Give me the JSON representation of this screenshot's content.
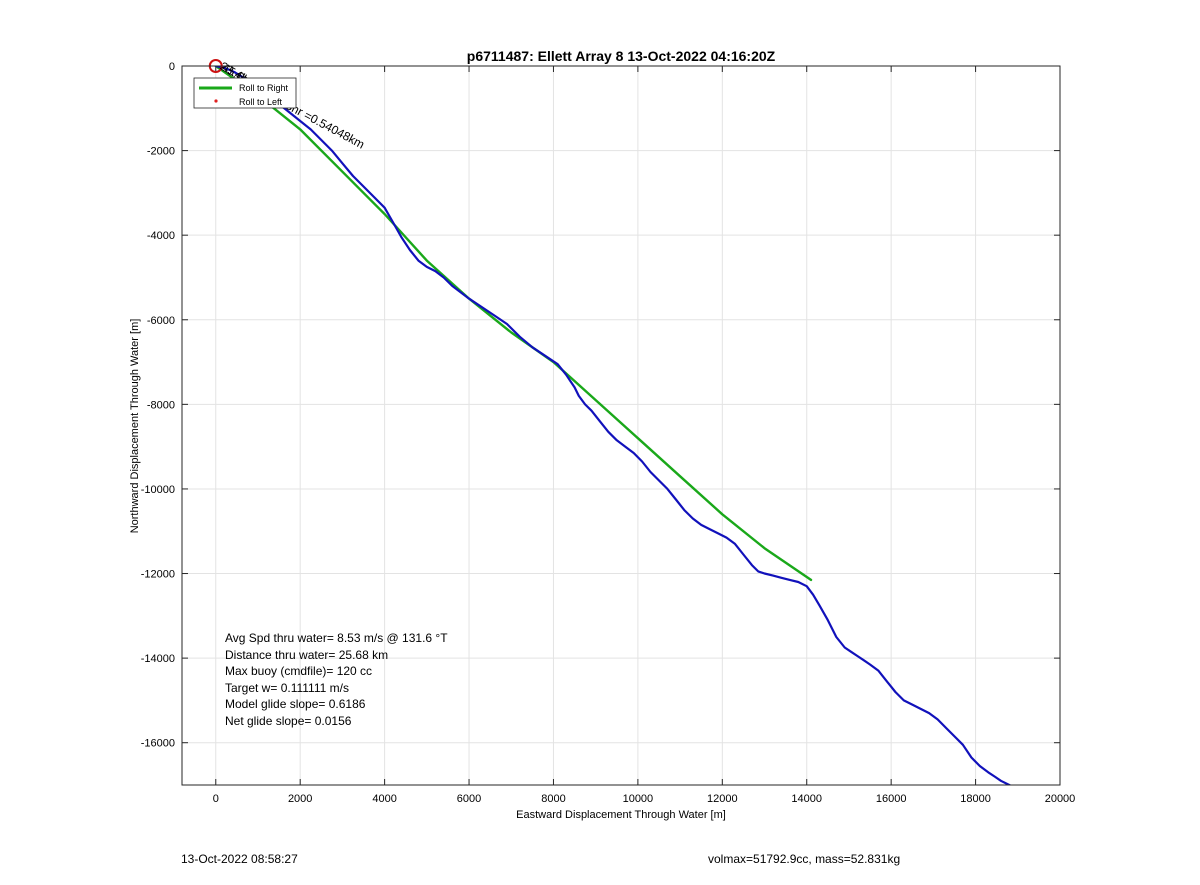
{
  "chart_data": {
    "type": "line",
    "title": "p6711487: Ellett Array 8 13-Oct-2022 04:16:20Z",
    "xlabel": "Eastward Displacement Through Water [m]",
    "ylabel": "Northward Displacement Through Water [m]",
    "xlim": [
      -800,
      20000
    ],
    "ylim": [
      -17000,
      0
    ],
    "xticks": [
      0,
      2000,
      4000,
      6000,
      8000,
      10000,
      12000,
      14000,
      16000,
      18000,
      20000
    ],
    "yticks": [
      0,
      -2000,
      -4000,
      -6000,
      -8000,
      -10000,
      -12000,
      -14000,
      -16000
    ],
    "grid": true,
    "legend_position": "top-left",
    "legend": [
      {
        "label": "Roll to Right",
        "color": "#1aa81a",
        "style": "line"
      },
      {
        "label": "Roll to Left",
        "color": "#e02020",
        "style": "dot"
      }
    ],
    "series": [
      {
        "color": "#1111bb",
        "x": [
          0,
          80,
          180,
          300,
          450,
          600,
          800,
          1000,
          1250,
          1500,
          1750,
          2000,
          2250,
          2500,
          2750,
          3000,
          3250,
          3500,
          3750,
          4000,
          4200,
          4400,
          4600,
          4800,
          5000,
          5200,
          5400,
          5600,
          5800,
          6000,
          6300,
          6600,
          6900,
          7200,
          7500,
          7800,
          8100,
          8300,
          8500,
          8600,
          8750,
          8900,
          9100,
          9300,
          9500,
          9700,
          9900,
          10100,
          10300,
          10500,
          10700,
          10900,
          11100,
          11300,
          11500,
          11700,
          11900,
          12100,
          12300,
          12500,
          12700,
          12850,
          13000,
          13200,
          13400,
          13600,
          13800,
          14000,
          14150,
          14300,
          14500,
          14700,
          14900,
          15050,
          15200,
          15350,
          15500,
          15700,
          15900,
          16100,
          16300,
          16500,
          16700,
          16900,
          17100,
          17300,
          17500,
          17700,
          17900,
          18100,
          18300,
          18450,
          18600,
          18800,
          19000,
          19200
        ],
        "y": [
          0,
          -20,
          -40,
          -80,
          -150,
          -240,
          -360,
          -520,
          -700,
          -900,
          -1100,
          -1300,
          -1500,
          -1750,
          -2000,
          -2300,
          -2600,
          -2850,
          -3100,
          -3350,
          -3700,
          -4050,
          -4350,
          -4600,
          -4750,
          -4850,
          -5000,
          -5200,
          -5350,
          -5500,
          -5700,
          -5900,
          -6100,
          -6400,
          -6650,
          -6850,
          -7050,
          -7300,
          -7600,
          -7800,
          -8000,
          -8150,
          -8400,
          -8650,
          -8850,
          -9000,
          -9150,
          -9350,
          -9600,
          -9800,
          -10000,
          -10250,
          -10500,
          -10700,
          -10850,
          -10950,
          -11050,
          -11150,
          -11300,
          -11550,
          -11800,
          -11950,
          -12000,
          -12050,
          -12100,
          -12150,
          -12200,
          -12300,
          -12500,
          -12750,
          -13100,
          -13500,
          -13750,
          -13850,
          -13950,
          -14050,
          -14150,
          -14300,
          -14550,
          -14800,
          -15000,
          -15100,
          -15200,
          -15300,
          -15450,
          -15650,
          -15850,
          -16050,
          -16350,
          -16550,
          -16700,
          -16800,
          -16900,
          -17000,
          -17100,
          -17200
        ]
      },
      {
        "color": "#1aa81a",
        "x": [
          0,
          1000,
          2000,
          3000,
          4000,
          5000,
          6000,
          7000,
          8000,
          9000,
          10000,
          11000,
          12000,
          13000,
          14100
        ],
        "y": [
          0,
          -700,
          -1500,
          -2500,
          -3500,
          -4600,
          -5500,
          -6300,
          -7000,
          -7900,
          -8800,
          -9700,
          -10600,
          -11400,
          -12150
        ]
      }
    ],
    "markers": [
      {
        "type": "circle",
        "x": 0,
        "y": 0,
        "color": "#cc1111"
      }
    ],
    "annotations": [
      {
        "text": "1 0.8358hr =0.54048km",
        "x": 800,
        "y": -550,
        "rotation": 28
      },
      {
        "text": "23.4hrs",
        "x": 80,
        "y": -60,
        "rotation": 30
      },
      {
        "text": "45.6hrs",
        "x": 120,
        "y": -90,
        "rotation": 30
      }
    ],
    "stats": [
      "Avg Spd thru water=  8.53 m/s @ 131.6 °T",
      "Distance thru water= 25.68 km",
      "Max buoy (cmdfile)= 120 cc",
      "Target w= 0.111111 m/s",
      "Model glide slope= 0.6186",
      "Net glide slope= 0.0156"
    ]
  },
  "footer": {
    "timestamp": "13-Oct-2022 08:58:27",
    "summary": "volmax=51792.9cc, mass=52.831kg"
  }
}
